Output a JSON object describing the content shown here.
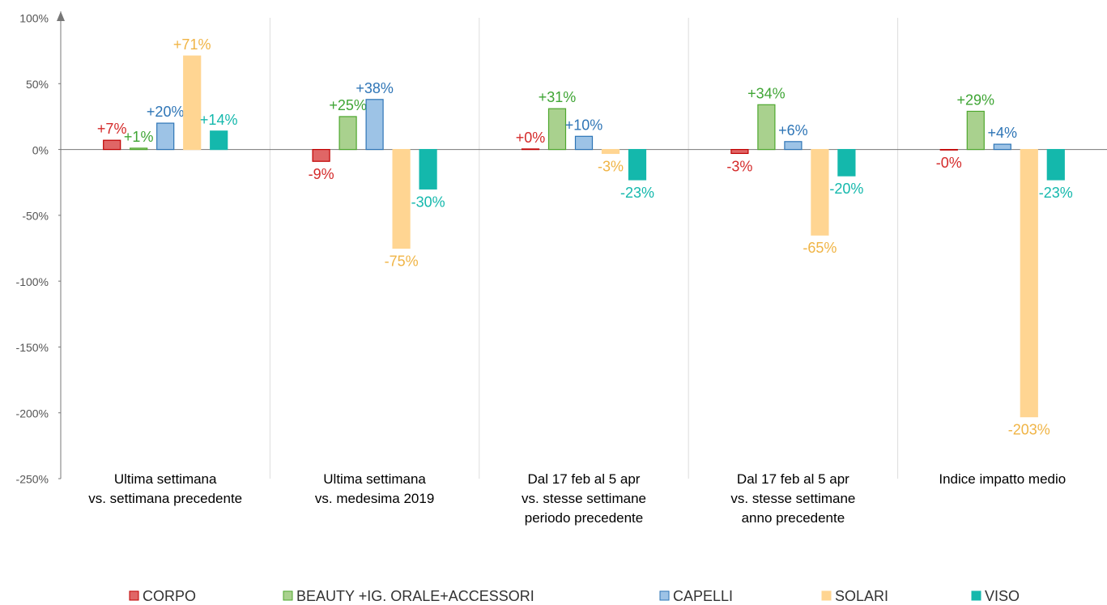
{
  "chart_data": {
    "type": "bar",
    "categories": [
      "Ultima settimana\nvs. settimana precedente",
      "Ultima settimana\nvs. medesima 2019",
      "Dal 17 feb al 5 apr\nvs. stesse settimane\nperiodo precedente",
      "Dal 17 feb al 5 apr\nvs. stesse settimane\nanno precedente",
      "Indice impatto medio"
    ],
    "series": [
      {
        "name": "CORPO",
        "color": "#e06666",
        "stroke": "#c00000",
        "label_color": "#d42a2a",
        "values": [
          7,
          -9,
          0.4,
          -3,
          -0.4
        ],
        "value_labels": [
          "+7%",
          "-9%",
          "+0%",
          "-3%",
          "-0%"
        ]
      },
      {
        "name": "BEAUTY +IG. ORALE+ACCESSORI",
        "color": "#a9d18e",
        "stroke": "#4ea72e",
        "label_color": "#3fa535",
        "values": [
          1,
          25,
          31,
          34,
          29
        ],
        "value_labels": [
          "+1%",
          "+25%",
          "+31%",
          "+34%",
          "+29%"
        ]
      },
      {
        "name": "CAPELLI",
        "color": "#9dc3e6",
        "stroke": "#2e75b6",
        "label_color": "#2e75b6",
        "values": [
          20,
          38,
          10,
          6,
          4
        ],
        "value_labels": [
          "+20%",
          "+38%",
          "+10%",
          "+6%",
          "+4%"
        ]
      },
      {
        "name": "SOLARI",
        "color": "#ffd592",
        "stroke": "#ffd592",
        "label_color": "#f0b445",
        "values": [
          71,
          -75,
          -3,
          -65,
          -203
        ],
        "value_labels": [
          "+71%",
          "-75%",
          "-3%",
          "-65%",
          "-203%"
        ]
      },
      {
        "name": "VISO",
        "color": "#14b8ac",
        "stroke": "#14b8ac",
        "label_color": "#14b8ac",
        "values": [
          14,
          -30,
          -23,
          -20,
          -23
        ],
        "value_labels": [
          "+14%",
          "-30%",
          "-23%",
          "-20%",
          "-23%"
        ]
      }
    ],
    "ylim": [
      -250,
      100
    ],
    "yticks": [
      {
        "value": -250,
        "label": "-250%"
      },
      {
        "value": -200,
        "label": "-200%"
      },
      {
        "value": -150,
        "label": "-150%"
      },
      {
        "value": -100,
        "label": "-100%"
      },
      {
        "value": -50,
        "label": "-50%"
      },
      {
        "value": 0,
        "label": "0%"
      },
      {
        "value": 50,
        "label": "50%"
      },
      {
        "value": 100,
        "label": "100%"
      }
    ]
  }
}
